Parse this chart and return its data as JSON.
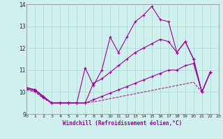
{
  "xlabel": "Windchill (Refroidissement éolien,°C)",
  "xlim": [
    0,
    23
  ],
  "ylim": [
    9,
    14
  ],
  "yticks": [
    9,
    10,
    11,
    12,
    13,
    14
  ],
  "xticks": [
    0,
    1,
    2,
    3,
    4,
    5,
    6,
    7,
    8,
    9,
    10,
    11,
    12,
    13,
    14,
    15,
    16,
    17,
    18,
    19,
    20,
    21,
    22,
    23
  ],
  "bg_color": "#cff0ee",
  "line_color": "#990099",
  "grid_color": "#aad8cc",
  "series_top": {
    "x": [
      0,
      1,
      2,
      3,
      4,
      5,
      6,
      7,
      8,
      9,
      10,
      11,
      12,
      13,
      14,
      15,
      16,
      17,
      18,
      19,
      20,
      21,
      22
    ],
    "y": [
      10.2,
      10.1,
      9.8,
      9.5,
      9.5,
      9.5,
      9.5,
      11.1,
      10.3,
      11.0,
      12.5,
      11.8,
      12.5,
      13.2,
      13.5,
      13.9,
      13.3,
      13.2,
      11.8,
      12.3,
      11.5,
      10.0,
      10.9
    ]
  },
  "series_mid_upper": {
    "x": [
      0,
      1,
      2,
      3,
      4,
      5,
      6,
      7,
      8,
      9,
      10,
      11,
      12,
      13,
      14,
      15,
      16,
      17,
      18,
      19,
      20,
      21,
      22
    ],
    "y": [
      10.2,
      10.1,
      9.8,
      9.5,
      9.5,
      9.5,
      9.5,
      9.5,
      10.4,
      10.6,
      10.9,
      11.2,
      11.5,
      11.8,
      12.0,
      12.2,
      12.4,
      12.3,
      11.8,
      12.3,
      11.5,
      10.0,
      10.9
    ]
  },
  "series_mid_lower": {
    "x": [
      0,
      1,
      2,
      3,
      4,
      5,
      6,
      7,
      8,
      9,
      10,
      11,
      12,
      13,
      14,
      15,
      16,
      17,
      18,
      19,
      20,
      21,
      22
    ],
    "y": [
      10.15,
      10.05,
      9.75,
      9.5,
      9.5,
      9.5,
      9.5,
      9.5,
      9.65,
      9.8,
      9.95,
      10.1,
      10.25,
      10.4,
      10.55,
      10.7,
      10.85,
      11.0,
      11.0,
      11.2,
      11.3,
      10.0,
      10.9
    ]
  },
  "series_bottom": {
    "x": [
      0,
      1,
      2,
      3,
      4,
      5,
      6,
      7,
      8,
      9,
      10,
      11,
      12,
      13,
      14,
      15,
      16,
      17,
      18,
      19,
      20,
      21,
      22
    ],
    "y": [
      10.1,
      10.0,
      9.7,
      9.5,
      9.5,
      9.5,
      9.5,
      9.5,
      9.55,
      9.62,
      9.7,
      9.77,
      9.85,
      9.92,
      10.0,
      10.07,
      10.15,
      10.22,
      10.3,
      10.37,
      10.45,
      10.0,
      10.9
    ]
  }
}
